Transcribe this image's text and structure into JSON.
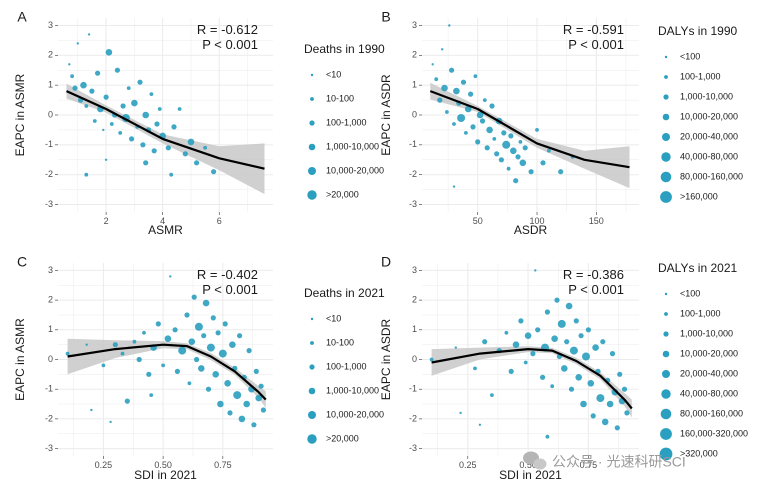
{
  "colors": {
    "point": "#2a9fbf",
    "trend": "#000000",
    "band": "#c8c8c8",
    "grid": "#ebebeb"
  },
  "watermark": {
    "text": "公众号 · 光速科研SCI",
    "icon": "wechat-icon"
  },
  "chart_data": [
    {
      "panel": "A",
      "type": "scatter",
      "xlabel": "ASMR",
      "ylabel": "EAPC in ASMR",
      "xlim": [
        0.3,
        7.9
      ],
      "ylim": [
        -3.25,
        3.25
      ],
      "xticks": [
        2,
        4,
        6
      ],
      "yticks": [
        -3,
        -2,
        -1,
        0,
        1,
        2,
        3
      ],
      "stat_r": "R = -0.612",
      "stat_p": "P < 0.001",
      "legend_title": "Deaths in 1990",
      "legend_labels": [
        "<10",
        "10-100",
        "100-1,000",
        "1,000-10,000",
        "10,000-20,000",
        ">20,000"
      ],
      "trend": {
        "x": [
          0.6,
          2.0,
          4.0,
          6.0,
          7.6
        ],
        "y": [
          0.8,
          0.2,
          -0.8,
          -1.45,
          -1.8
        ],
        "se": [
          0.25,
          0.12,
          0.15,
          0.4,
          0.85
        ]
      },
      "points": [
        [
          0.7,
          1.7,
          1
        ],
        [
          0.8,
          1.3,
          2
        ],
        [
          0.9,
          0.9,
          3
        ],
        [
          1.0,
          2.4,
          1
        ],
        [
          1.1,
          0.5,
          3
        ],
        [
          1.2,
          1.0,
          4
        ],
        [
          1.3,
          0.3,
          2
        ],
        [
          1.4,
          2.7,
          1
        ],
        [
          1.5,
          0.8,
          3
        ],
        [
          1.6,
          -0.2,
          2
        ],
        [
          1.7,
          1.4,
          3
        ],
        [
          1.8,
          0.2,
          4
        ],
        [
          1.9,
          -0.5,
          1
        ],
        [
          2.0,
          0.6,
          3
        ],
        [
          2.1,
          2.1,
          4
        ],
        [
          2.2,
          -0.3,
          2
        ],
        [
          2.3,
          0.0,
          3
        ],
        [
          2.4,
          1.5,
          3
        ],
        [
          2.5,
          -0.6,
          2
        ],
        [
          2.6,
          0.3,
          3
        ],
        [
          2.7,
          -0.1,
          5
        ],
        [
          2.8,
          0.9,
          2
        ],
        [
          2.9,
          -0.8,
          3
        ],
        [
          3.0,
          0.4,
          4
        ],
        [
          3.1,
          -0.4,
          2
        ],
        [
          3.2,
          1.1,
          3
        ],
        [
          3.3,
          -1.0,
          3
        ],
        [
          3.4,
          0.0,
          4
        ],
        [
          3.5,
          -0.5,
          3
        ],
        [
          3.6,
          0.7,
          2
        ],
        [
          3.7,
          -1.2,
          3
        ],
        [
          3.8,
          -0.3,
          3
        ],
        [
          3.9,
          0.2,
          2
        ],
        [
          4.0,
          -0.7,
          4
        ],
        [
          4.2,
          -1.1,
          3
        ],
        [
          4.4,
          -0.4,
          3
        ],
        [
          4.6,
          0.2,
          2
        ],
        [
          4.8,
          -1.3,
          3
        ],
        [
          5.0,
          -0.9,
          4
        ],
        [
          5.2,
          -1.6,
          3
        ],
        [
          5.5,
          -1.1,
          2
        ],
        [
          5.8,
          -1.9,
          3
        ],
        [
          1.3,
          -2.0,
          2
        ],
        [
          2.0,
          -1.5,
          1
        ],
        [
          3.4,
          -1.6,
          3
        ],
        [
          4.3,
          -2.0,
          2
        ]
      ]
    },
    {
      "panel": "B",
      "type": "scatter",
      "xlabel": "ASDR",
      "ylabel": "EAPC in ASDR",
      "xlim": [
        3,
        186
      ],
      "ylim": [
        -3.25,
        3.25
      ],
      "xticks": [
        50,
        100,
        150
      ],
      "yticks": [
        -3,
        -2,
        -1,
        0,
        1,
        2,
        3
      ],
      "stat_r": "R = -0.591",
      "stat_p": "P < 0.001",
      "legend_title": "DALYs in 1990",
      "legend_labels": [
        "<100",
        "100-1,000",
        "1,000-10,000",
        "10,000-20,000",
        "20,000-40,000",
        "40,000-80,000",
        "80,000-160,000",
        ">160,000"
      ],
      "trend": {
        "x": [
          10,
          50,
          100,
          140,
          178
        ],
        "y": [
          0.8,
          0.2,
          -0.95,
          -1.5,
          -1.75
        ],
        "se": [
          0.28,
          0.1,
          0.15,
          0.3,
          0.7
        ]
      },
      "points": [
        [
          12,
          1.7,
          1
        ],
        [
          15,
          1.2,
          2
        ],
        [
          18,
          0.5,
          3
        ],
        [
          20,
          2.2,
          1
        ],
        [
          22,
          0.9,
          4
        ],
        [
          24,
          0.1,
          2
        ],
        [
          26,
          3.0,
          1
        ],
        [
          28,
          1.5,
          3
        ],
        [
          30,
          -0.3,
          2
        ],
        [
          32,
          0.8,
          4
        ],
        [
          34,
          0.4,
          3
        ],
        [
          36,
          -0.1,
          5
        ],
        [
          38,
          1.1,
          3
        ],
        [
          40,
          -0.6,
          2
        ],
        [
          42,
          0.2,
          4
        ],
        [
          44,
          0.7,
          3
        ],
        [
          46,
          -0.4,
          3
        ],
        [
          48,
          1.3,
          2
        ],
        [
          50,
          -0.9,
          3
        ],
        [
          52,
          0.0,
          4
        ],
        [
          54,
          -0.2,
          3
        ],
        [
          56,
          0.5,
          2
        ],
        [
          58,
          -1.1,
          3
        ],
        [
          60,
          -0.5,
          4
        ],
        [
          62,
          0.3,
          3
        ],
        [
          64,
          -0.8,
          2
        ],
        [
          66,
          -1.3,
          3
        ],
        [
          68,
          -0.2,
          4
        ],
        [
          70,
          -1.5,
          3
        ],
        [
          72,
          -0.6,
          3
        ],
        [
          74,
          -1.0,
          5
        ],
        [
          76,
          -1.8,
          2
        ],
        [
          78,
          -0.7,
          3
        ],
        [
          80,
          -1.2,
          4
        ],
        [
          82,
          -2.2,
          3
        ],
        [
          84,
          -1.4,
          3
        ],
        [
          86,
          -0.9,
          2
        ],
        [
          88,
          -1.6,
          4
        ],
        [
          90,
          -1.1,
          3
        ],
        [
          95,
          -1.9,
          3
        ],
        [
          100,
          -0.5,
          2
        ],
        [
          105,
          -1.6,
          3
        ],
        [
          110,
          -1.2,
          2
        ],
        [
          120,
          -1.9,
          3
        ],
        [
          130,
          -1.4,
          2
        ],
        [
          30,
          -2.4,
          1
        ]
      ]
    },
    {
      "panel": "C",
      "type": "scatter",
      "xlabel": "SDI in 2021",
      "ylabel": "EAPC in ASMR",
      "xlim": [
        0.06,
        0.96
      ],
      "ylim": [
        -3.25,
        3.25
      ],
      "xticks": [
        0.25,
        0.5,
        0.75
      ],
      "xtick_labels": [
        "0.25",
        "0.50",
        "0.75"
      ],
      "yticks": [
        -3,
        -2,
        -1,
        0,
        1,
        2,
        3
      ],
      "stat_r": "R = -0.402",
      "stat_p": "P < 0.001",
      "legend_title": "Deaths in 2021",
      "legend_labels": [
        "<10",
        "10-100",
        "100-1,000",
        "1,000-10,000",
        "10,000-20,000",
        ">20,000"
      ],
      "trend": {
        "x": [
          0.1,
          0.3,
          0.5,
          0.6,
          0.7,
          0.8,
          0.9,
          0.93
        ],
        "y": [
          0.1,
          0.35,
          0.5,
          0.45,
          0.1,
          -0.4,
          -1.1,
          -1.35
        ],
        "se": [
          0.6,
          0.3,
          0.12,
          0.1,
          0.12,
          0.12,
          0.2,
          0.28
        ]
      },
      "points": [
        [
          0.1,
          0.2,
          2
        ],
        [
          0.18,
          0.5,
          1
        ],
        [
          0.25,
          -0.2,
          2
        ],
        [
          0.3,
          0.5,
          3
        ],
        [
          0.33,
          0.2,
          2
        ],
        [
          0.35,
          -1.4,
          3
        ],
        [
          0.38,
          0.6,
          2
        ],
        [
          0.4,
          0.0,
          3
        ],
        [
          0.42,
          0.9,
          2
        ],
        [
          0.44,
          -0.5,
          3
        ],
        [
          0.46,
          0.4,
          4
        ],
        [
          0.48,
          1.2,
          3
        ],
        [
          0.5,
          -0.2,
          2
        ],
        [
          0.52,
          0.7,
          4
        ],
        [
          0.53,
          2.8,
          1
        ],
        [
          0.55,
          1.0,
          3
        ],
        [
          0.56,
          -0.4,
          3
        ],
        [
          0.58,
          0.3,
          5
        ],
        [
          0.6,
          1.5,
          3
        ],
        [
          0.61,
          -0.8,
          2
        ],
        [
          0.62,
          0.6,
          4
        ],
        [
          0.63,
          2.1,
          3
        ],
        [
          0.64,
          0.0,
          3
        ],
        [
          0.65,
          1.1,
          5
        ],
        [
          0.66,
          -0.3,
          4
        ],
        [
          0.67,
          0.8,
          3
        ],
        [
          0.68,
          1.9,
          4
        ],
        [
          0.69,
          -1.0,
          3
        ],
        [
          0.7,
          0.4,
          5
        ],
        [
          0.71,
          1.4,
          3
        ],
        [
          0.72,
          -0.5,
          4
        ],
        [
          0.73,
          0.9,
          3
        ],
        [
          0.74,
          -1.5,
          4
        ],
        [
          0.75,
          0.2,
          5
        ],
        [
          0.76,
          1.2,
          3
        ],
        [
          0.77,
          -0.8,
          4
        ],
        [
          0.78,
          -1.8,
          3
        ],
        [
          0.79,
          0.5,
          4
        ],
        [
          0.8,
          -0.3,
          3
        ],
        [
          0.81,
          -1.2,
          5
        ],
        [
          0.82,
          0.8,
          3
        ],
        [
          0.83,
          -2.0,
          4
        ],
        [
          0.84,
          -0.6,
          3
        ],
        [
          0.85,
          -1.5,
          4
        ],
        [
          0.86,
          0.3,
          3
        ],
        [
          0.87,
          -1.0,
          4
        ],
        [
          0.88,
          -2.2,
          3
        ],
        [
          0.89,
          -0.4,
          3
        ],
        [
          0.9,
          -1.3,
          4
        ],
        [
          0.91,
          -0.9,
          3
        ],
        [
          0.92,
          -1.7,
          3
        ],
        [
          0.2,
          -1.7,
          1
        ],
        [
          0.28,
          -2.1,
          1
        ],
        [
          0.45,
          -1.2,
          2
        ]
      ]
    },
    {
      "panel": "D",
      "type": "scatter",
      "xlabel": "SDI in 2021",
      "ylabel": "EAPC in ASDR",
      "xlim": [
        0.06,
        0.96
      ],
      "ylim": [
        -3.25,
        3.25
      ],
      "xticks": [
        0.25,
        0.5,
        0.75
      ],
      "xtick_labels": [
        "0.25",
        "0.50",
        "0.75"
      ],
      "yticks": [
        -3,
        -2,
        -1,
        0,
        1,
        2,
        3
      ],
      "stat_r": "R = -0.386",
      "stat_p": "P < 0.001",
      "legend_title": "DALYs in 2021",
      "legend_labels": [
        "<100",
        "100-1,000",
        "1,000-10,000",
        "10,000-20,000",
        "20,000-40,000",
        "40,000-80,000",
        "80,000-160,000",
        "160,000-320,000",
        ">320,000"
      ],
      "trend": {
        "x": [
          0.1,
          0.3,
          0.5,
          0.6,
          0.7,
          0.8,
          0.9,
          0.93
        ],
        "y": [
          -0.1,
          0.2,
          0.35,
          0.3,
          -0.05,
          -0.55,
          -1.35,
          -1.65
        ],
        "se": [
          0.45,
          0.2,
          0.1,
          0.09,
          0.11,
          0.12,
          0.22,
          0.3
        ]
      },
      "points": [
        [
          0.1,
          0.0,
          2
        ],
        [
          0.2,
          0.4,
          1
        ],
        [
          0.28,
          -0.3,
          2
        ],
        [
          0.32,
          0.6,
          3
        ],
        [
          0.35,
          -1.2,
          2
        ],
        [
          0.38,
          0.3,
          3
        ],
        [
          0.41,
          0.9,
          2
        ],
        [
          0.43,
          -0.4,
          3
        ],
        [
          0.45,
          0.5,
          4
        ],
        [
          0.47,
          1.3,
          3
        ],
        [
          0.49,
          -0.1,
          2
        ],
        [
          0.5,
          0.8,
          4
        ],
        [
          0.52,
          0.2,
          3
        ],
        [
          0.53,
          3.0,
          1
        ],
        [
          0.54,
          1.0,
          3
        ],
        [
          0.56,
          -0.6,
          3
        ],
        [
          0.57,
          0.4,
          5
        ],
        [
          0.58,
          1.6,
          3
        ],
        [
          0.6,
          -0.9,
          2
        ],
        [
          0.61,
          0.7,
          4
        ],
        [
          0.62,
          2.0,
          3
        ],
        [
          0.63,
          0.1,
          3
        ],
        [
          0.64,
          1.2,
          5
        ],
        [
          0.65,
          -0.3,
          4
        ],
        [
          0.66,
          0.6,
          3
        ],
        [
          0.67,
          1.8,
          4
        ],
        [
          0.68,
          -1.0,
          3
        ],
        [
          0.69,
          0.3,
          5
        ],
        [
          0.7,
          1.3,
          3
        ],
        [
          0.71,
          -0.6,
          4
        ],
        [
          0.72,
          0.8,
          3
        ],
        [
          0.73,
          -1.5,
          4
        ],
        [
          0.74,
          0.1,
          5
        ],
        [
          0.75,
          1.0,
          3
        ],
        [
          0.76,
          -0.8,
          4
        ],
        [
          0.77,
          -1.9,
          3
        ],
        [
          0.78,
          0.4,
          4
        ],
        [
          0.79,
          -0.4,
          3
        ],
        [
          0.8,
          -1.3,
          5
        ],
        [
          0.81,
          0.6,
          3
        ],
        [
          0.82,
          -2.1,
          4
        ],
        [
          0.83,
          -0.7,
          3
        ],
        [
          0.84,
          -1.5,
          4
        ],
        [
          0.85,
          0.2,
          3
        ],
        [
          0.86,
          -1.1,
          4
        ],
        [
          0.87,
          -2.3,
          3
        ],
        [
          0.88,
          -0.5,
          3
        ],
        [
          0.89,
          -1.4,
          4
        ],
        [
          0.9,
          -1.0,
          3
        ],
        [
          0.91,
          -1.8,
          3
        ],
        [
          0.22,
          -1.8,
          1
        ],
        [
          0.3,
          -2.2,
          1
        ],
        [
          0.58,
          -2.6,
          2
        ]
      ]
    }
  ]
}
